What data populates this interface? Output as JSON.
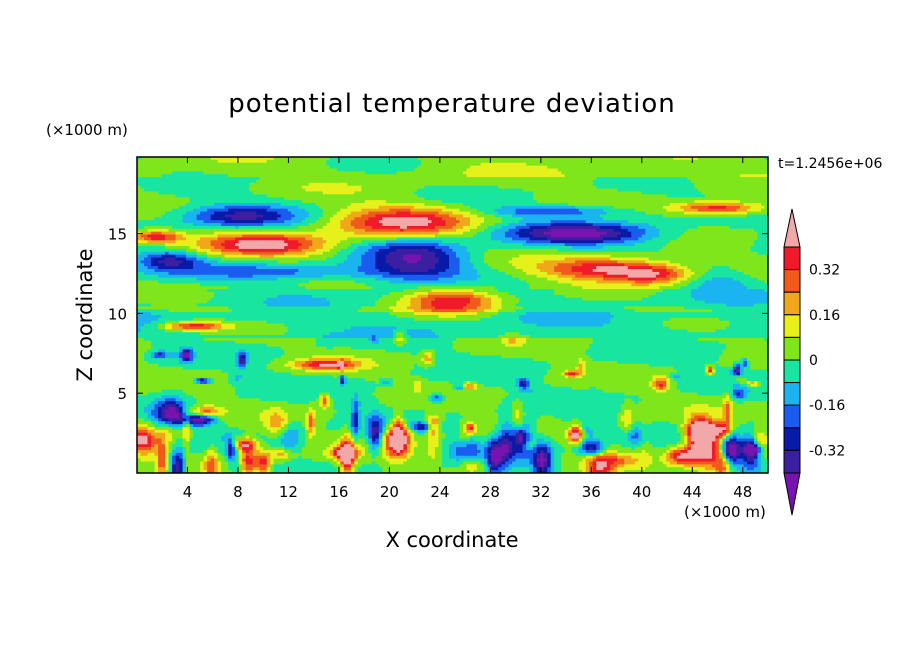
{
  "chart_data": {
    "type": "heatmap",
    "title": "potential temperature deviation",
    "xlabel": "X coordinate",
    "ylabel": "Z coordinate",
    "x_unit": "(×1000 m)",
    "y_unit": "(×1000 m)",
    "time_label": "t=1.2456e+06",
    "xlim": [
      0,
      50
    ],
    "ylim": [
      0,
      19.8
    ],
    "x_ticks": [
      4,
      8,
      12,
      16,
      20,
      24,
      28,
      32,
      36,
      40,
      44,
      48
    ],
    "y_ticks": [
      5,
      10,
      15
    ],
    "colorbar": {
      "levels": [
        -0.4,
        -0.32,
        -0.24,
        -0.16,
        -0.08,
        0,
        0.08,
        0.16,
        0.24,
        0.32,
        0.4
      ],
      "tick_labels": [
        "0.32",
        "0.16",
        "0",
        "-0.16",
        "-0.32"
      ],
      "tick_values": [
        0.32,
        0.16,
        0,
        -0.16,
        -0.32
      ],
      "colors": [
        "#7a12b0",
        "#3c1fa0",
        "#0a1aa8",
        "#1a5cf0",
        "#1ab4f0",
        "#18e6a0",
        "#7ee61a",
        "#e6f01a",
        "#f0a81a",
        "#f05a1a",
        "#f01a2a",
        "#f2a8a8"
      ],
      "extend": "both"
    },
    "features": [
      {
        "x": 8,
        "z": 16.1,
        "rx": 4.5,
        "rz": 0.7,
        "v": -0.33
      },
      {
        "x": 33,
        "z": 16.4,
        "rx": 5,
        "rz": 0.35,
        "v": -0.25
      },
      {
        "x": 35,
        "z": 15.0,
        "rx": 6,
        "rz": 0.7,
        "v": -0.42
      },
      {
        "x": 22,
        "z": 13.4,
        "rx": 4,
        "rz": 1.3,
        "v": -0.38
      },
      {
        "x": 12,
        "z": 12.6,
        "rx": 9,
        "rz": 0.5,
        "v": -0.2
      },
      {
        "x": 2.5,
        "z": 13.3,
        "rx": 2.5,
        "rz": 0.6,
        "v": -0.32
      },
      {
        "x": 21,
        "z": 15.7,
        "rx": 5.5,
        "rz": 1.0,
        "v": 0.42
      },
      {
        "x": 10,
        "z": 14.3,
        "rx": 5,
        "rz": 0.7,
        "v": 0.42
      },
      {
        "x": 1.5,
        "z": 14.8,
        "rx": 2,
        "rz": 0.4,
        "v": 0.4
      },
      {
        "x": 46,
        "z": 16.6,
        "rx": 3.5,
        "rz": 0.4,
        "v": 0.4
      },
      {
        "x": 37,
        "z": 12.8,
        "rx": 5,
        "rz": 0.7,
        "v": 0.42
      },
      {
        "x": 41,
        "z": 12.4,
        "rx": 3,
        "rz": 0.6,
        "v": 0.3
      },
      {
        "x": 25,
        "z": 10.8,
        "rx": 3.5,
        "rz": 0.8,
        "v": 0.4
      },
      {
        "x": 4.5,
        "z": 9.2,
        "rx": 2.5,
        "rz": 0.3,
        "v": 0.4
      },
      {
        "x": 15,
        "z": 6.8,
        "rx": 2.5,
        "rz": 0.35,
        "v": 0.38
      },
      {
        "x": 13,
        "z": 18.0,
        "rx": 14,
        "rz": 0.5,
        "v": 0.03
      },
      {
        "x": 38,
        "z": 18.6,
        "rx": 12,
        "rz": 0.6,
        "v": 0.04
      },
      {
        "x": 46,
        "z": 12.0,
        "rx": 3,
        "rz": 0.8,
        "v": -0.12
      }
    ]
  }
}
